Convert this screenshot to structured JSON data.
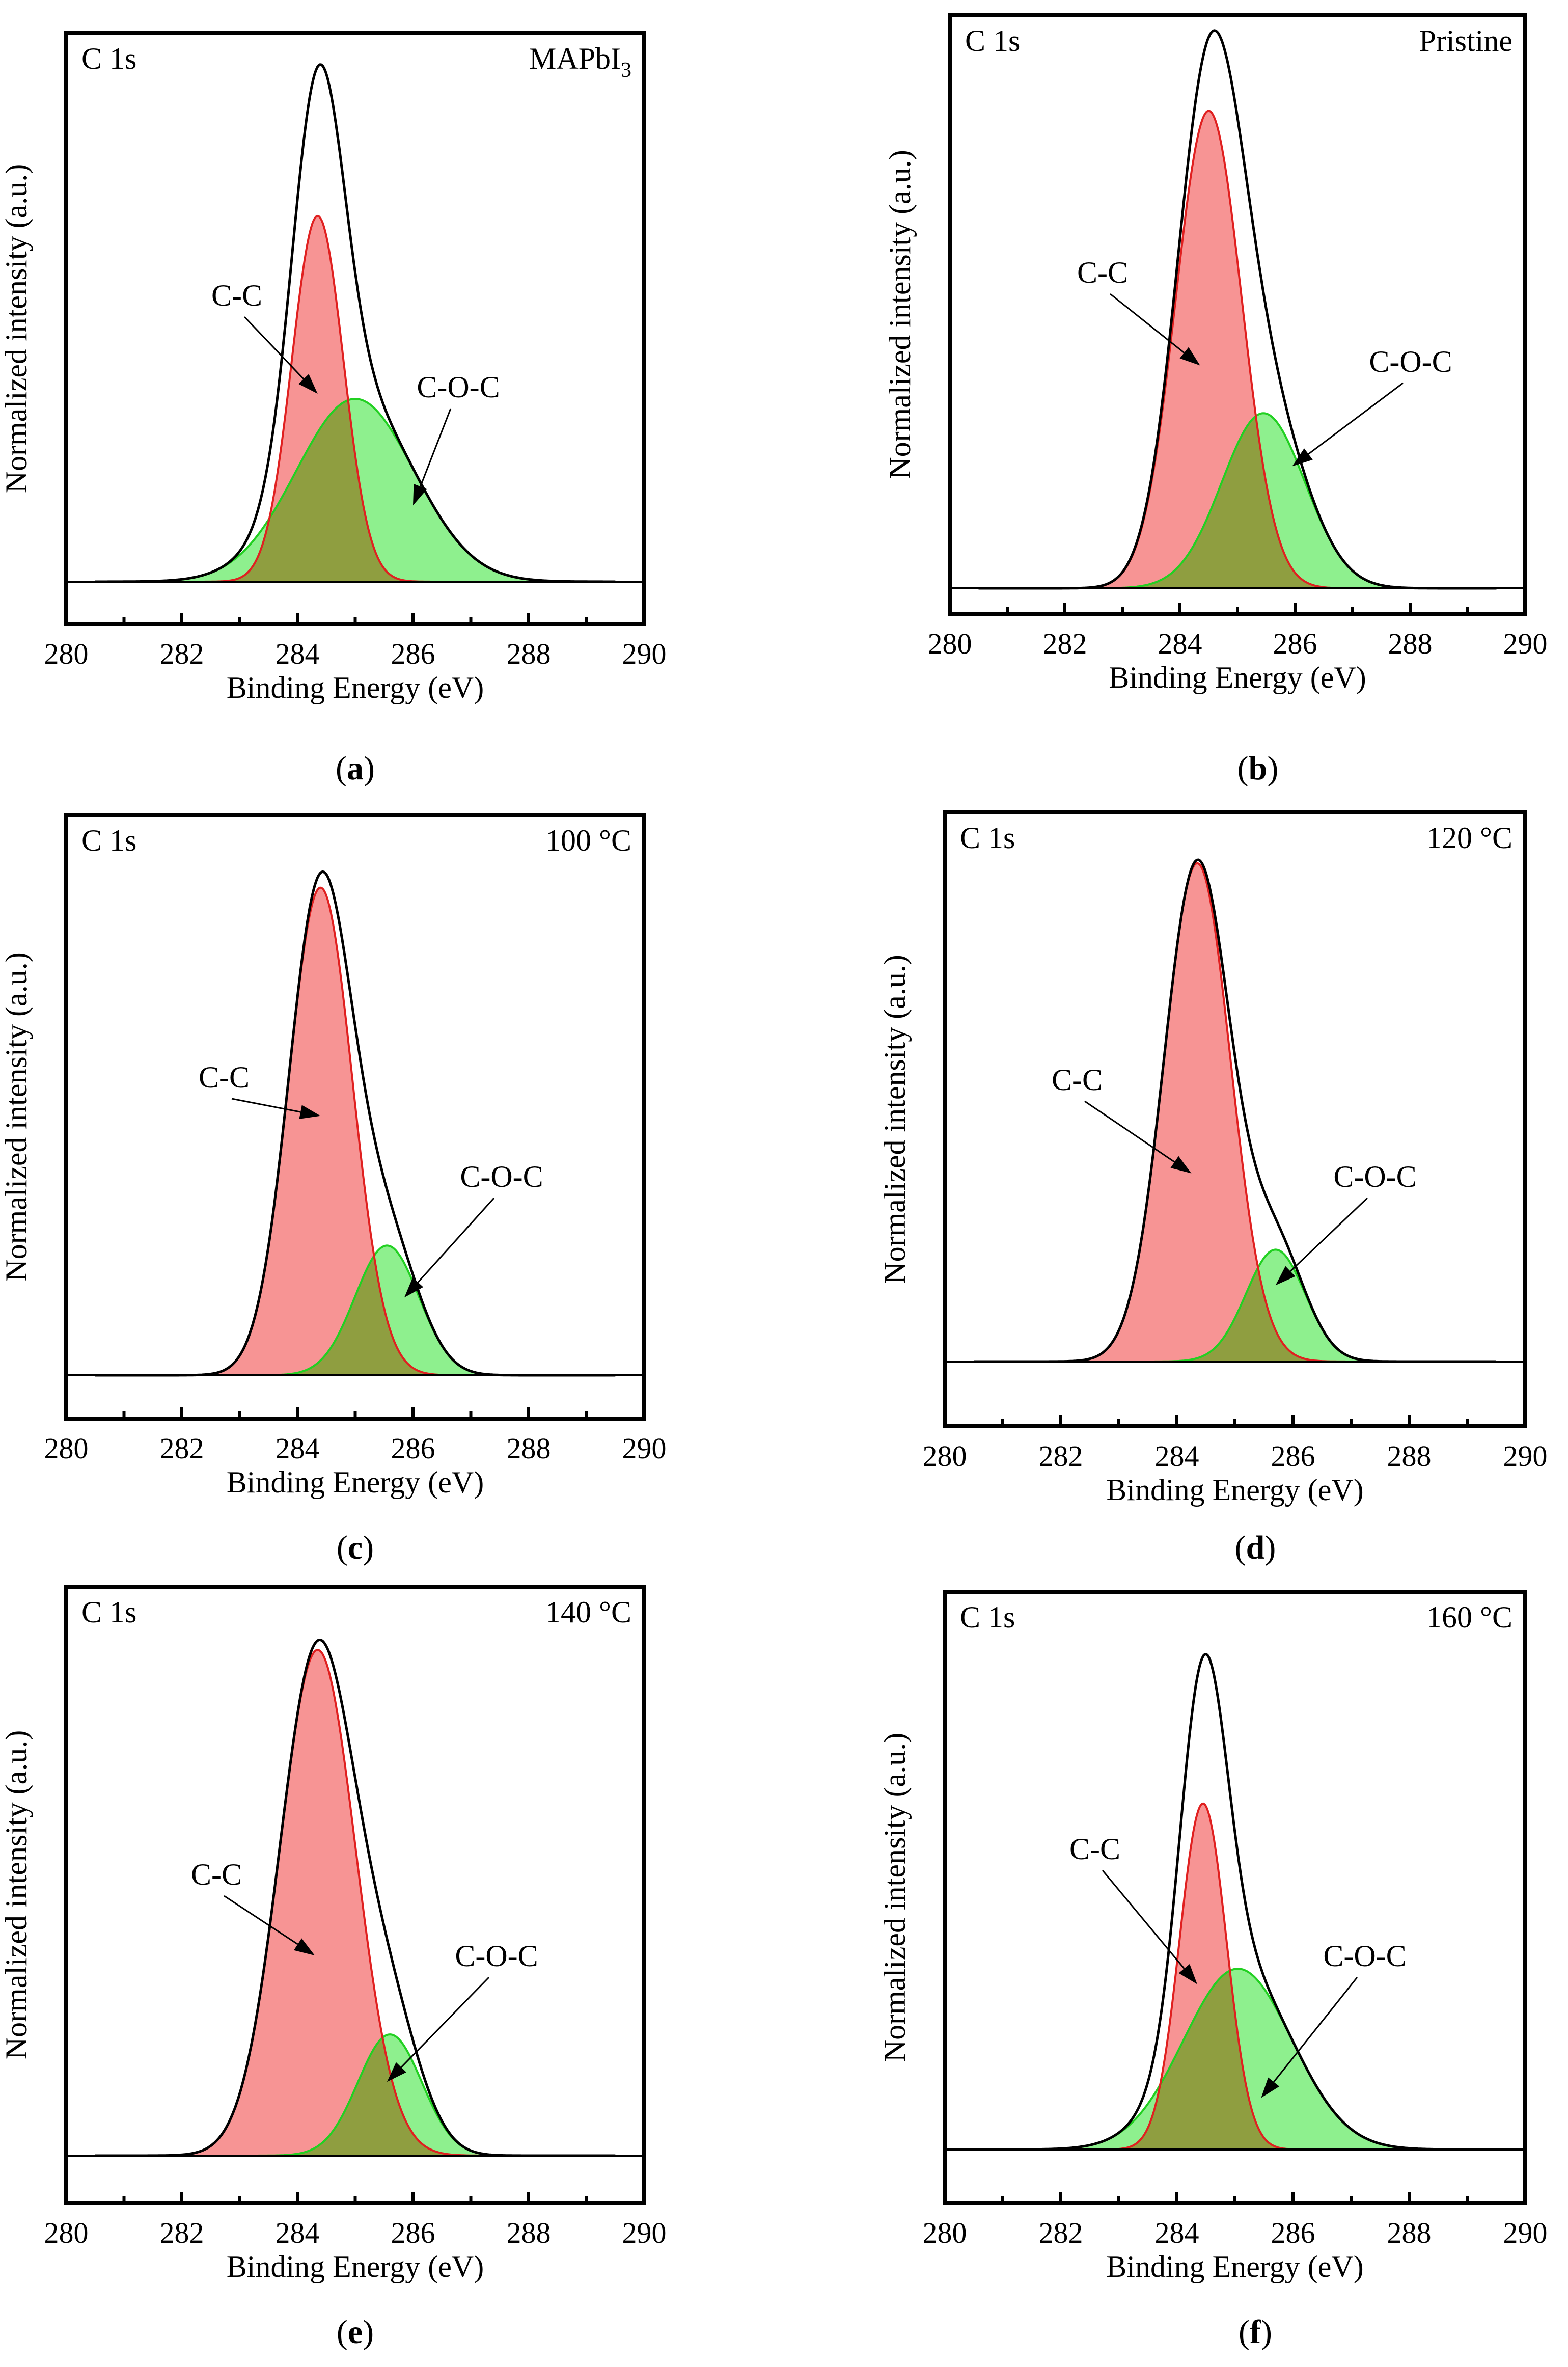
{
  "figure": {
    "x_axis": {
      "label": "Binding Energy (eV)",
      "range": [
        280,
        290
      ],
      "major_ticks": [
        280,
        282,
        284,
        286,
        288,
        290
      ],
      "major_tick_labels": [
        "280",
        "282",
        "284",
        "286",
        "288",
        "290"
      ],
      "minor_ticks": [
        281,
        283,
        285,
        287,
        289
      ]
    },
    "y_axis": {
      "label": "Normalized intensity (a.u.)",
      "range": [
        0,
        1.08
      ]
    },
    "core_level_label": "C 1s",
    "component_labels": {
      "cc": "C-C",
      "coc": "C-O-C"
    },
    "colors": {
      "envelope": "#000000",
      "cc_line": "#e02020",
      "cc_fill": "#f79494",
      "coc_line": "#22d022",
      "coc_fill": "#8ef08e",
      "overlap_fill": "#8f9e40"
    }
  },
  "chart_data": [
    {
      "type": "area",
      "panel": "(a)",
      "letter": "a",
      "sample_label": "MAPbI",
      "sample_subscript": "3",
      "xlabel": "Binding Energy (eV)",
      "ylabel": "Normalized intensity (a.u.)",
      "xlim": [
        280,
        290
      ],
      "series": [
        {
          "name": "C-C",
          "center_eV": 284.35,
          "height": 0.72,
          "fwhm_eV": 1.05
        },
        {
          "name": "C-O-C",
          "center_eV": 285.0,
          "height": 0.36,
          "fwhm_eV": 2.4
        },
        {
          "name": "Envelope",
          "type": "sum"
        }
      ],
      "annotations": [
        {
          "text": "C-C",
          "arrow_to_eV": 284.35,
          "arrow_to_y": 0.37
        },
        {
          "text": "C-O-C",
          "arrow_to_eV": 286.0,
          "arrow_to_y": 0.15
        }
      ]
    },
    {
      "type": "area",
      "panel": "(b)",
      "letter": "b",
      "sample_label": "Pristine",
      "sample_subscript": "",
      "xlabel": "Binding Energy (eV)",
      "ylabel": "Normalized intensity (a.u.)",
      "xlim": [
        280,
        290
      ],
      "series": [
        {
          "name": "C-C",
          "center_eV": 284.5,
          "height": 0.9,
          "fwhm_eV": 1.35
        },
        {
          "name": "C-O-C",
          "center_eV": 285.45,
          "height": 0.33,
          "fwhm_eV": 1.7
        },
        {
          "name": "Envelope",
          "type": "sum"
        }
      ],
      "annotations": [
        {
          "text": "C-C",
          "arrow_to_eV": 284.35,
          "arrow_to_y": 0.42
        },
        {
          "text": "C-O-C",
          "arrow_to_eV": 285.95,
          "arrow_to_y": 0.23
        }
      ]
    },
    {
      "type": "area",
      "panel": "(c)",
      "letter": "c",
      "sample_label": "100 °C",
      "sample_subscript": "",
      "xlabel": "Binding Energy (eV)",
      "ylabel": "Normalized intensity (a.u.)",
      "xlim": [
        280,
        290
      ],
      "series": [
        {
          "name": "C-C",
          "center_eV": 284.4,
          "height": 0.94,
          "fwhm_eV": 1.3
        },
        {
          "name": "C-O-C",
          "center_eV": 285.55,
          "height": 0.25,
          "fwhm_eV": 1.3
        },
        {
          "name": "Envelope",
          "type": "sum"
        }
      ],
      "annotations": [
        {
          "text": "C-C",
          "arrow_to_eV": 284.4,
          "arrow_to_y": 0.5
        },
        {
          "text": "C-O-C",
          "arrow_to_eV": 285.85,
          "arrow_to_y": 0.15
        }
      ]
    },
    {
      "type": "area",
      "panel": "(d)",
      "letter": "d",
      "sample_label": "120 °C",
      "sample_subscript": "",
      "xlabel": "Binding Energy (eV)",
      "ylabel": "Normalized intensity (a.u.)",
      "xlim": [
        280,
        290
      ],
      "series": [
        {
          "name": "C-C",
          "center_eV": 284.35,
          "height": 0.98,
          "fwhm_eV": 1.35
        },
        {
          "name": "C-O-C",
          "center_eV": 285.7,
          "height": 0.22,
          "fwhm_eV": 1.2
        },
        {
          "name": "Envelope",
          "type": "sum"
        }
      ],
      "annotations": [
        {
          "text": "C-C",
          "arrow_to_eV": 284.25,
          "arrow_to_y": 0.37
        },
        {
          "text": "C-O-C",
          "arrow_to_eV": 285.7,
          "arrow_to_y": 0.15
        }
      ]
    },
    {
      "type": "area",
      "panel": "(e)",
      "letter": "e",
      "sample_label": "140 °C",
      "sample_subscript": "",
      "xlabel": "Binding Energy (eV)",
      "ylabel": "Normalized intensity (a.u.)",
      "xlim": [
        280,
        290
      ],
      "series": [
        {
          "name": "C-C",
          "center_eV": 284.35,
          "height": 0.96,
          "fwhm_eV": 1.55
        },
        {
          "name": "C-O-C",
          "center_eV": 285.6,
          "height": 0.23,
          "fwhm_eV": 1.3
        },
        {
          "name": "Envelope",
          "type": "sum"
        }
      ],
      "annotations": [
        {
          "text": "C-C",
          "arrow_to_eV": 284.3,
          "arrow_to_y": 0.38
        },
        {
          "text": "C-O-C",
          "arrow_to_eV": 285.55,
          "arrow_to_y": 0.14
        }
      ]
    },
    {
      "type": "area",
      "panel": "(f)",
      "letter": "f",
      "sample_label": "160 °C",
      "sample_subscript": "",
      "xlabel": "Binding Energy (eV)",
      "ylabel": "Normalized intensity (a.u.)",
      "xlim": [
        280,
        290
      ],
      "series": [
        {
          "name": "C-C",
          "center_eV": 284.45,
          "height": 0.67,
          "fwhm_eV": 0.95
        },
        {
          "name": "C-O-C",
          "center_eV": 285.05,
          "height": 0.35,
          "fwhm_eV": 2.2
        },
        {
          "name": "Envelope",
          "type": "sum"
        }
      ],
      "annotations": [
        {
          "text": "C-C",
          "arrow_to_eV": 284.35,
          "arrow_to_y": 0.32
        },
        {
          "text": "C-O-C",
          "arrow_to_eV": 285.45,
          "arrow_to_y": 0.1
        }
      ]
    }
  ]
}
